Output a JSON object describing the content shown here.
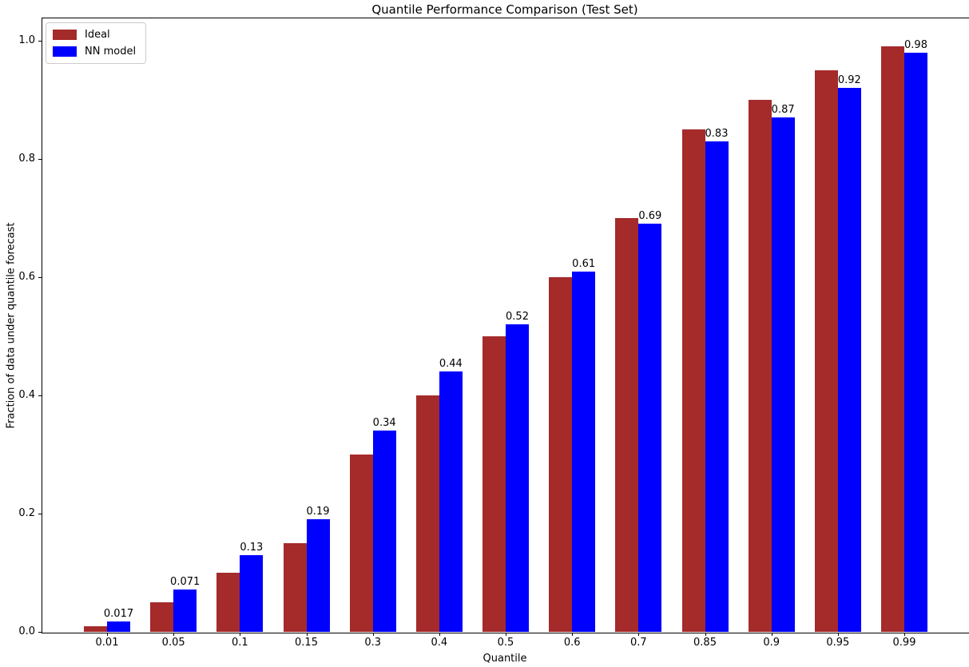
{
  "chart_data": {
    "type": "bar",
    "title": "Quantile Performance Comparison (Test Set)",
    "xlabel": "Quantile",
    "ylabel": "Fraction of data under quantile forecast",
    "categories": [
      "0.01",
      "0.05",
      "0.1",
      "0.15",
      "0.3",
      "0.4",
      "0.5",
      "0.6",
      "0.7",
      "0.85",
      "0.9",
      "0.95",
      "0.99"
    ],
    "series": [
      {
        "name": "Ideal",
        "color": "#A52A2A",
        "values": [
          0.01,
          0.05,
          0.1,
          0.15,
          0.3,
          0.4,
          0.5,
          0.6,
          0.7,
          0.85,
          0.9,
          0.95,
          0.99
        ]
      },
      {
        "name": "NN model",
        "color": "#0000FF",
        "values": [
          0.017,
          0.071,
          0.13,
          0.19,
          0.34,
          0.44,
          0.52,
          0.61,
          0.69,
          0.83,
          0.87,
          0.92,
          0.98
        ],
        "value_labels": [
          "0.017",
          "0.071",
          "0.13",
          "0.19",
          "0.34",
          "0.44",
          "0.52",
          "0.61",
          "0.69",
          "0.83",
          "0.87",
          "0.92",
          "0.98"
        ]
      }
    ],
    "ylim": [
      0,
      1.04
    ],
    "yticks": [
      "0.0",
      "0.2",
      "0.4",
      "0.6",
      "0.8",
      "1.0"
    ],
    "grid": false,
    "legend_position": "upper left",
    "value_labels_on_series": "NN model"
  }
}
